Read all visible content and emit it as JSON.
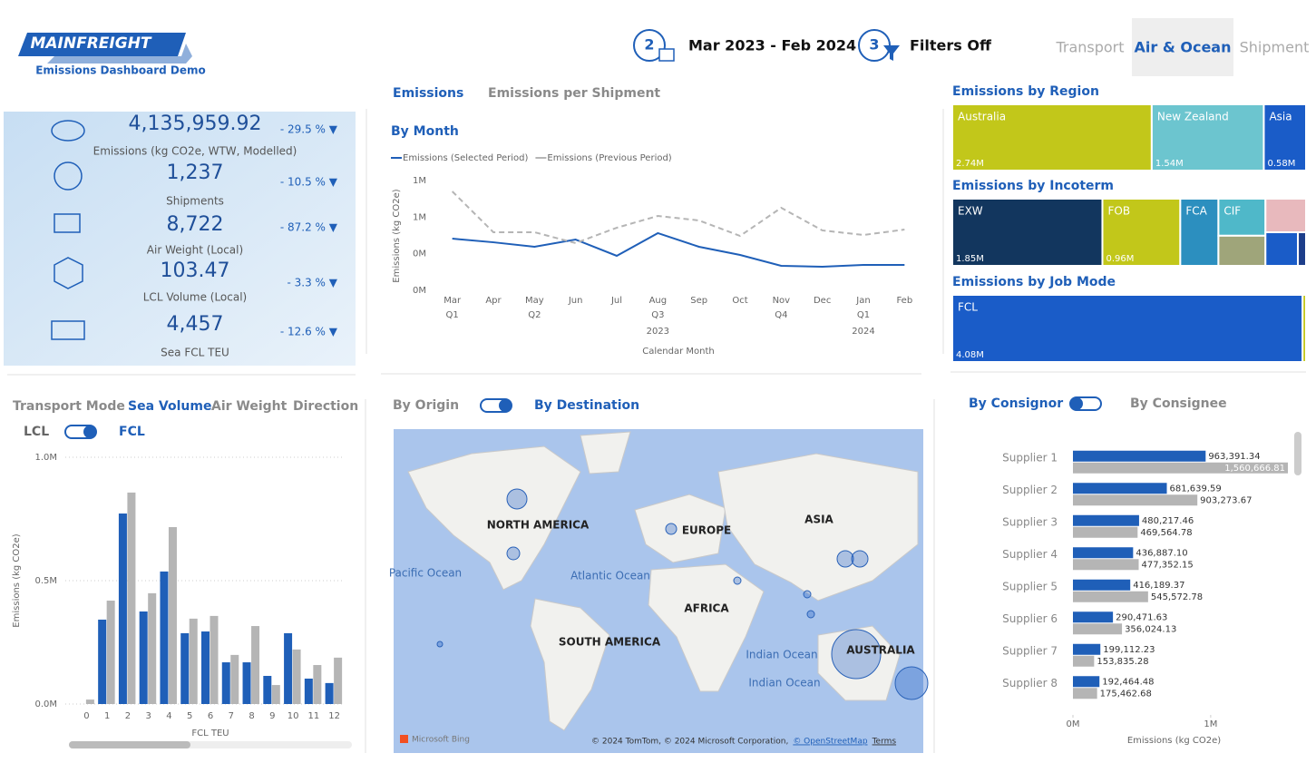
{
  "header": {
    "logo": "MAINFREIGHT",
    "subtitle": "Emissions Dashboard Demo",
    "step2": "2",
    "period": "Mar 2023 - Feb 2024",
    "step3": "3",
    "filters": "Filters Off",
    "tabs": [
      "Transport",
      "Air & Ocean",
      "Shipment"
    ]
  },
  "kpis": [
    {
      "value": "4,135,959.92",
      "label": "Emissions (kg CO2e, WTW, Modelled)",
      "change": "- 29.5 % ▼"
    },
    {
      "value": "1,237",
      "label": "Shipments",
      "change": "- 10.5 % ▼"
    },
    {
      "value": "8,722",
      "label": "Air Weight (Local)",
      "change": "- 87.2 % ▼"
    },
    {
      "value": "103.47",
      "label": "LCL Volume (Local)",
      "change": "- 3.3 % ▼"
    },
    {
      "value": "4,457",
      "label": "Sea FCL TEU",
      "change": "- 12.6 % ▼"
    }
  ],
  "emission_tabs": [
    "Emissions",
    "Emissions per Shipment"
  ],
  "transport_tabs": [
    "Transport Mode",
    "Sea Volume",
    "Air Weight",
    "Direction"
  ],
  "fcl_toggle": [
    "LCL",
    "FCL"
  ],
  "map": {
    "toggle": [
      "By Origin",
      "By Destination"
    ],
    "labels": [
      "NORTH AMERICA",
      "EUROPE",
      "ASIA",
      "AFRICA",
      "SOUTH AMERICA",
      "AUSTRALIA",
      "Pacific Ocean",
      "Atlantic Ocean",
      "Indian Ocean",
      "Indian Ocean"
    ],
    "attribution": "© 2024 TomTom, © 2024 Microsoft Corporation,",
    "osm": "© OpenStreetMap",
    "terms": "Terms",
    "bing": "Microsoft Bing"
  },
  "consignor_toggle": [
    "By Consignor",
    "By Consignee"
  ],
  "chart_data": [
    {
      "type": "line",
      "title": "By Month",
      "y_label": "Emissions (kg CO2e)",
      "x_label": "Calendar Month",
      "categories": [
        "Mar",
        "Apr",
        "May",
        "Jun",
        "Jul",
        "Aug",
        "Sep",
        "Oct",
        "Nov",
        "Dec",
        "Jan",
        "Feb"
      ],
      "quarters": [
        "Q1",
        null,
        "Q2",
        null,
        null,
        "Q3",
        null,
        null,
        "Q4",
        null,
        "Q1",
        null
      ],
      "years": [
        null,
        null,
        null,
        null,
        null,
        "2023",
        null,
        null,
        null,
        null,
        "2024",
        null
      ],
      "ylim": [
        0,
        1200000
      ],
      "yticks": [
        {
          "value": 0,
          "label": "0M"
        },
        {
          "value": 400000,
          "label": "0M"
        },
        {
          "value": 800000,
          "label": "1M"
        },
        {
          "value": 1200000,
          "label": "1M"
        }
      ],
      "grid": false,
      "series": [
        {
          "name": "Emissions (Selected Period)",
          "color": "#1f5fb8",
          "style": "solid",
          "values": [
            565000,
            525000,
            476000,
            555000,
            377000,
            625000,
            476000,
            387000,
            268000,
            258000,
            278000,
            278000
          ]
        },
        {
          "name": "Emissions (Previous Period)",
          "color": "#b5b5b5",
          "style": "dashed",
          "values": [
            1081000,
            635000,
            635000,
            516000,
            684000,
            813000,
            764000,
            595000,
            902000,
            655000,
            605000,
            664000
          ]
        }
      ]
    },
    {
      "type": "bar",
      "y_label": "Emissions (kg CO2e)",
      "x_label": "FCL TEU",
      "categories": [
        "0",
        "1",
        "2",
        "3",
        "4",
        "5",
        "6",
        "7",
        "8",
        "9",
        "10",
        "11",
        "12"
      ],
      "ylim": [
        0,
        1000000
      ],
      "yticks": [
        {
          "value": 0,
          "label": "0.0M"
        },
        {
          "value": 500000,
          "label": "0.5M"
        },
        {
          "value": 1000000,
          "label": "1.0M"
        }
      ],
      "grid": true,
      "series": [
        {
          "color": "#1f5fb8",
          "values": [
            0,
            342000,
            772000,
            375000,
            537000,
            287000,
            294000,
            169000,
            169000,
            114000,
            287000,
            103000,
            85000
          ]
        },
        {
          "color": "#b5b5b5",
          "values": [
            18000,
            419000,
            857000,
            449000,
            717000,
            346000,
            357000,
            199000,
            316000,
            77000,
            221000,
            158000,
            188000
          ]
        }
      ]
    },
    {
      "type": "hbar",
      "x_label": "Emissions (kg CO2e)",
      "categories": [
        "Supplier 1",
        "Supplier 2",
        "Supplier 3",
        "Supplier 4",
        "Supplier 5",
        "Supplier 6",
        "Supplier 7",
        "Supplier 8"
      ],
      "xlim": [
        0,
        1600000
      ],
      "xticks": [
        {
          "value": 0,
          "label": "0M"
        },
        {
          "value": 1000000,
          "label": "1M"
        }
      ],
      "series": [
        {
          "color": "#1f5fb8",
          "values": [
            963391.34,
            681639.59,
            480217.46,
            436887.1,
            416189.37,
            290471.63,
            199112.23,
            192464.48
          ],
          "value_labels": [
            "963,391.34",
            "681,639.59",
            "480,217.46",
            "436,887.10",
            "416,189.37",
            "290,471.63",
            "199,112.23",
            "192,464.48"
          ]
        },
        {
          "color": "#b5b5b5",
          "values": [
            1560666.81,
            903273.67,
            469564.78,
            477352.15,
            545572.78,
            356024.13,
            153835.28,
            175462.68
          ],
          "value_labels": [
            "1,560,666.81",
            "903,273.67",
            "469,564.78",
            "477,352.15",
            "545,572.78",
            "356,024.13",
            "153,835.28",
            "175,462.68"
          ]
        }
      ]
    },
    {
      "type": "treemap",
      "title": "Emissions by Region",
      "categories": [
        "Australia",
        "New Zealand",
        "Asia"
      ],
      "values": [
        2740000,
        1540000,
        580000
      ],
      "value_labels": [
        "2.74M",
        "1.54M",
        "0.58M"
      ],
      "colors": [
        "#c2c71a",
        "#6cc5cf",
        "#1a5cc8"
      ]
    },
    {
      "type": "treemap",
      "title": "Emissions by Incoterm",
      "categories": [
        "EXW",
        "FOB",
        "FCA",
        "CIF",
        null,
        null,
        null,
        null
      ],
      "values": [
        1850000,
        960000,
        470000,
        320000,
        260000,
        250000,
        200000,
        50000
      ],
      "value_labels": [
        "1.85M",
        "0.96M",
        null,
        null,
        null,
        null,
        null,
        null
      ],
      "colors": [
        "#12365e",
        "#c2c71a",
        "#2c8fbf",
        "#4fb8c9",
        "#9fa57a",
        "#e8b9bd",
        "#1a5cc8",
        "#1d3e8a"
      ]
    },
    {
      "type": "treemap",
      "title": "Emissions by Job Mode",
      "categories": [
        "FCL",
        null
      ],
      "values": [
        4080000,
        40000
      ],
      "value_labels": [
        "4.08M",
        null
      ],
      "colors": [
        "#1a5cc8",
        "#c2c71a"
      ]
    }
  ]
}
